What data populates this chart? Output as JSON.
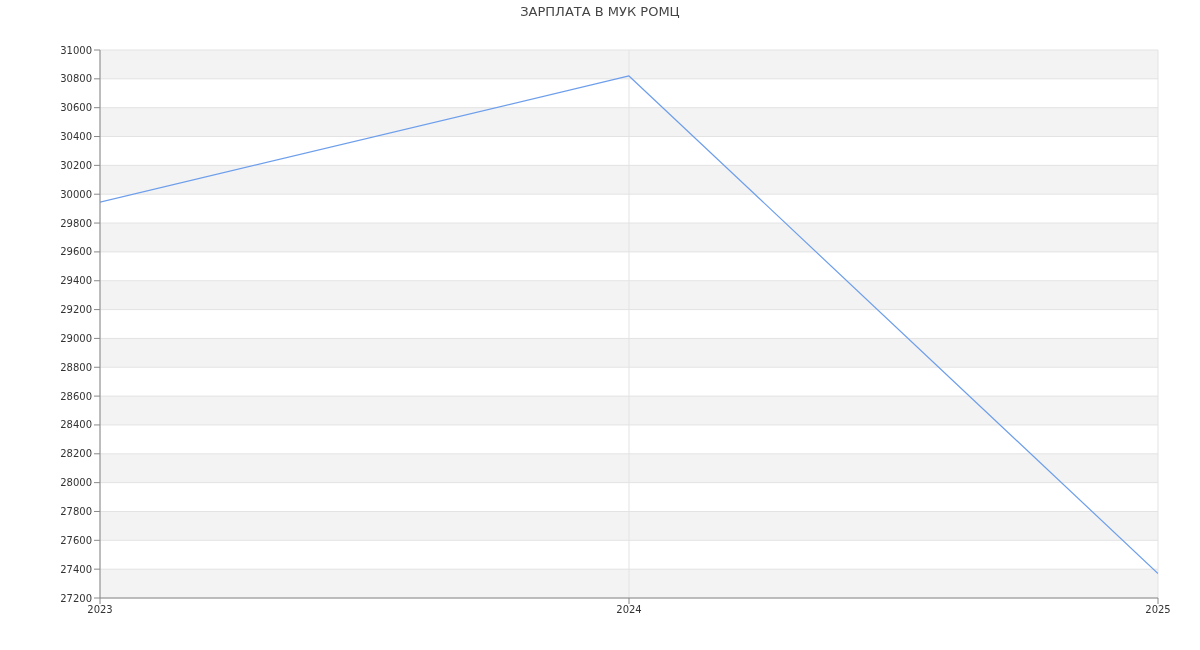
{
  "chart_data": {
    "type": "line",
    "title": "ЗАРПЛАТА В МУК РОМЦ",
    "x": [
      "2023",
      "2024",
      "2025"
    ],
    "series": [
      {
        "color": "#6d9eeb",
        "values": [
          29945,
          30820,
          27370
        ]
      }
    ],
    "xlim": [
      "2023",
      "2025"
    ],
    "xticks": [
      "2023",
      "2024",
      "2025"
    ],
    "ylim": [
      27200,
      31000
    ],
    "yticks": [
      27200,
      27400,
      27600,
      27800,
      28000,
      28200,
      28400,
      28600,
      28800,
      29000,
      29200,
      29400,
      29600,
      29800,
      30000,
      30200,
      30400,
      30600,
      30800,
      31000
    ],
    "grid": true,
    "marker": "none",
    "line_style": "solid"
  }
}
